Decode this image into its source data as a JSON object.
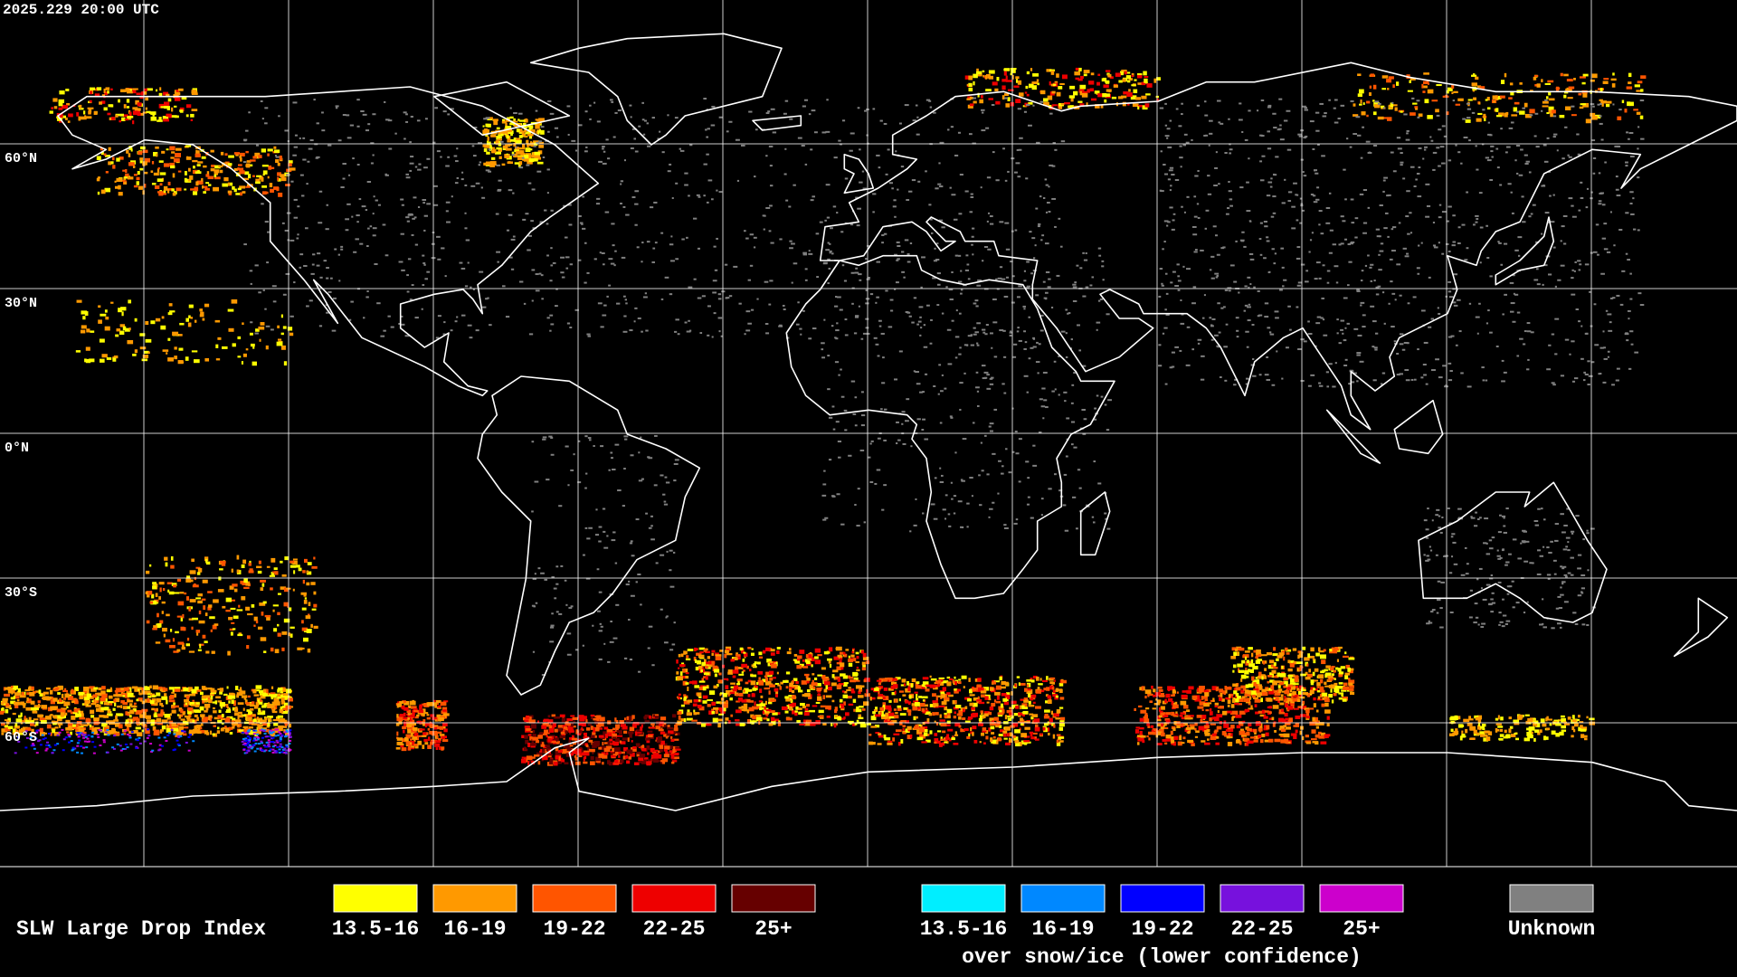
{
  "header": {
    "timestamp": "2025.229 20:00 UTC"
  },
  "latitude_labels": [
    "60°N",
    "30°N",
    "0°N",
    "30°S",
    "60°S"
  ],
  "legend": {
    "title": "SLW Large Drop Index",
    "items": [
      {
        "label": "13.5-16",
        "color": "#ffff00"
      },
      {
        "label": "16-19",
        "color": "#ff9900"
      },
      {
        "label": "19-22",
        "color": "#ff5500"
      },
      {
        "label": "22-25",
        "color": "#ee0000"
      },
      {
        "label": "25+",
        "color": "#660000"
      }
    ],
    "snow_ice_items": [
      {
        "label": "13.5-16",
        "color": "#00eeff"
      },
      {
        "label": "16-19",
        "color": "#0088ff"
      },
      {
        "label": "19-22",
        "color": "#0000ff"
      },
      {
        "label": "22-25",
        "color": "#7711dd"
      },
      {
        "label": "25+",
        "color": "#cc00cc"
      }
    ],
    "snow_ice_caption": "over snow/ice (lower confidence)",
    "unknown": {
      "label": "Unknown",
      "color": "#808080"
    }
  }
}
